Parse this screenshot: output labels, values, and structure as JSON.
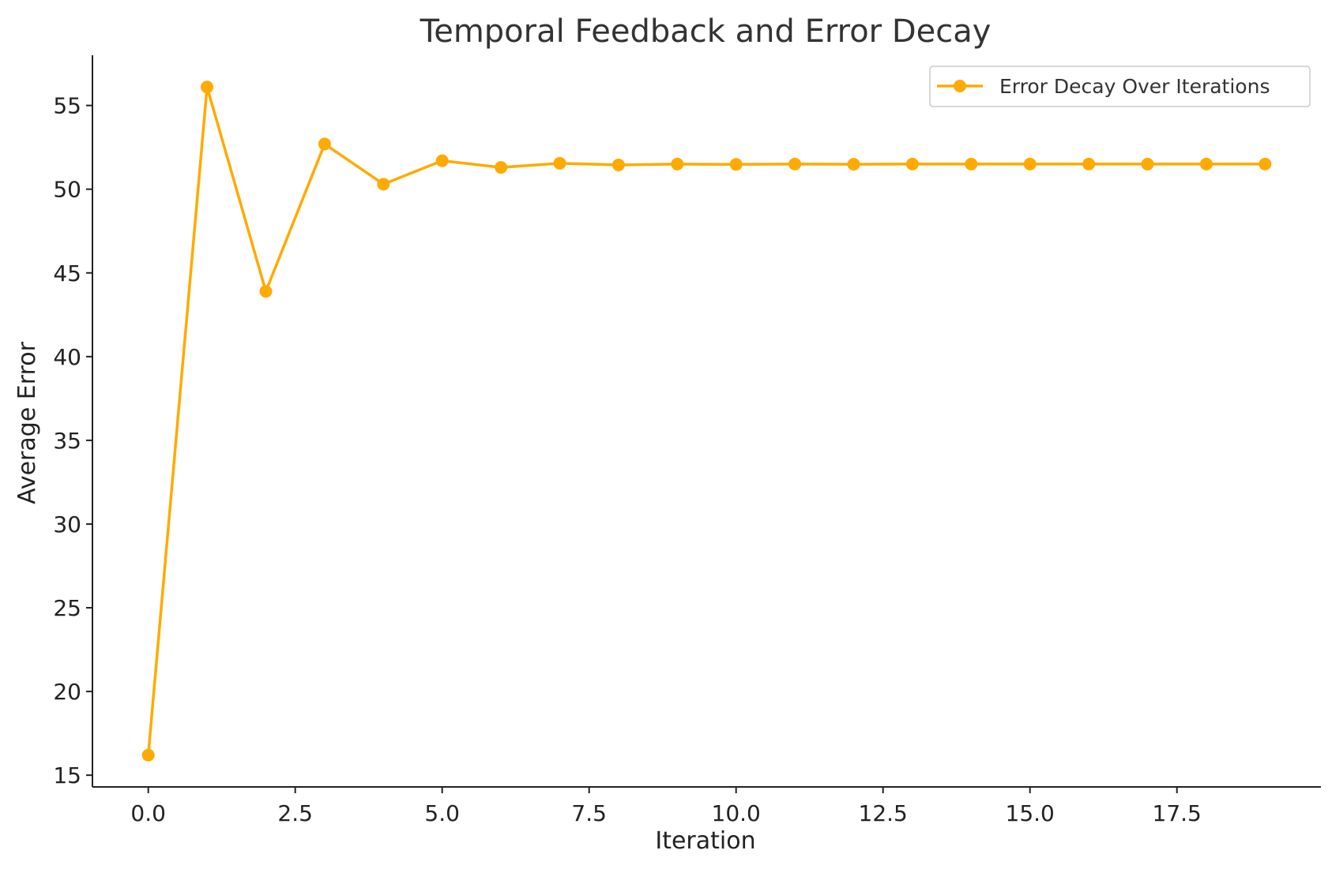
{
  "chart_data": {
    "type": "line",
    "title": "Temporal Feedback and Error Decay",
    "xlabel": "Iteration",
    "ylabel": "Average Error",
    "xlim": [
      -0.95,
      19.95
    ],
    "ylim": [
      14.3,
      58.0
    ],
    "xticks": [
      0.0,
      2.5,
      5.0,
      7.5,
      10.0,
      12.5,
      15.0,
      17.5
    ],
    "xtick_labels": [
      "0.0",
      "2.5",
      "5.0",
      "7.5",
      "10.0",
      "12.5",
      "15.0",
      "17.5"
    ],
    "yticks": [
      15,
      20,
      25,
      30,
      35,
      40,
      45,
      50,
      55
    ],
    "ytick_labels": [
      "15",
      "20",
      "25",
      "30",
      "35",
      "40",
      "45",
      "50",
      "55"
    ],
    "grid": false,
    "legend_position": "top-right",
    "series": [
      {
        "name": "Error Decay Over Iterations",
        "color": "#FFAA00",
        "marker": "circle",
        "x": [
          0,
          1,
          2,
          3,
          4,
          5,
          6,
          7,
          8,
          9,
          10,
          11,
          12,
          13,
          14,
          15,
          16,
          17,
          18,
          19
        ],
        "y": [
          16.2,
          56.1,
          43.9,
          52.7,
          50.3,
          51.7,
          51.3,
          51.55,
          51.45,
          51.5,
          51.48,
          51.5,
          51.49,
          51.5,
          51.5,
          51.5,
          51.5,
          51.5,
          51.5,
          51.5
        ]
      }
    ]
  }
}
